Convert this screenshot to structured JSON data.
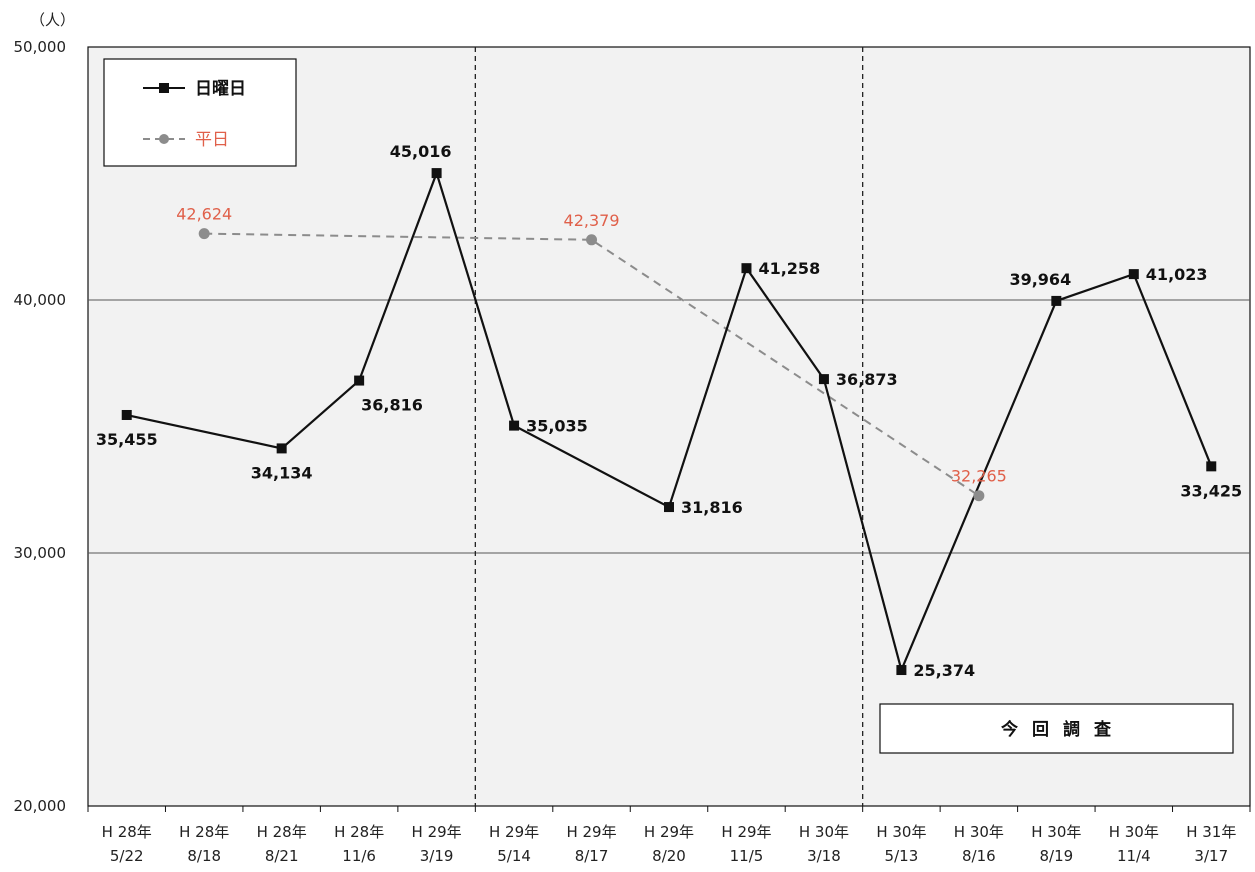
{
  "chart_data": {
    "type": "line",
    "unit_label": "（人）",
    "ylim": [
      20000,
      50000
    ],
    "yticks": [
      20000,
      30000,
      40000,
      50000
    ],
    "ytick_labels": [
      "20,000",
      "30,000",
      "40,000",
      "50,000"
    ],
    "grid": "horizontal",
    "legend_placement": "top-left",
    "categories": [
      {
        "era": "H 28年",
        "date": "5/22"
      },
      {
        "era": "H 28年",
        "date": "8/18"
      },
      {
        "era": "H 28年",
        "date": "8/21"
      },
      {
        "era": "H 28年",
        "date": "11/6"
      },
      {
        "era": "H 29年",
        "date": "3/19"
      },
      {
        "era": "H 29年",
        "date": "5/14"
      },
      {
        "era": "H 29年",
        "date": "8/17"
      },
      {
        "era": "H 29年",
        "date": "8/20"
      },
      {
        "era": "H 29年",
        "date": "11/5"
      },
      {
        "era": "H 30年",
        "date": "3/18"
      },
      {
        "era": "H 30年",
        "date": "5/13"
      },
      {
        "era": "H 30年",
        "date": "8/16"
      },
      {
        "era": "H 30年",
        "date": "8/19"
      },
      {
        "era": "H 30年",
        "date": "11/4"
      },
      {
        "era": "H 31年",
        "date": "3/17"
      }
    ],
    "series": [
      {
        "name": "日曜日",
        "color": "#111111",
        "style": "solid",
        "marker": "square",
        "points": [
          {
            "index": 0,
            "value": 35455,
            "label": "35,455",
            "label_pos": "below"
          },
          {
            "index": 2,
            "value": 34134,
            "label": "34,134",
            "label_pos": "below"
          },
          {
            "index": 3,
            "value": 36816,
            "label": "36,816",
            "label_pos": "below-right"
          },
          {
            "index": 4,
            "value": 45016,
            "label": "45,016",
            "label_pos": "above-left"
          },
          {
            "index": 5,
            "value": 35035,
            "label": "35,035",
            "label_pos": "right"
          },
          {
            "index": 7,
            "value": 31816,
            "label": "31,816",
            "label_pos": "right"
          },
          {
            "index": 8,
            "value": 41258,
            "label": "41,258",
            "label_pos": "right"
          },
          {
            "index": 9,
            "value": 36873,
            "label": "36,873",
            "label_pos": "right"
          },
          {
            "index": 10,
            "value": 25374,
            "label": "25,374",
            "label_pos": "right"
          },
          {
            "index": 12,
            "value": 39964,
            "label": "39,964",
            "label_pos": "above-left"
          },
          {
            "index": 13,
            "value": 41023,
            "label": "41,023",
            "label_pos": "right"
          },
          {
            "index": 14,
            "value": 33425,
            "label": "33,425",
            "label_pos": "below"
          }
        ]
      },
      {
        "name": "平日",
        "color": "#8c8c8c",
        "label_color": "#e0604a",
        "style": "dashed",
        "marker": "circle",
        "points": [
          {
            "index": 1,
            "value": 42624,
            "label": "42,624",
            "label_pos": "above"
          },
          {
            "index": 6,
            "value": 42379,
            "label": "42,379",
            "label_pos": "above"
          },
          {
            "index": 11,
            "value": 32265,
            "label": "32,265",
            "label_pos": "above"
          }
        ]
      }
    ],
    "separators_after_index": [
      4,
      9
    ],
    "annotation": "今回調査",
    "annotation_columns": [
      10,
      14
    ]
  }
}
